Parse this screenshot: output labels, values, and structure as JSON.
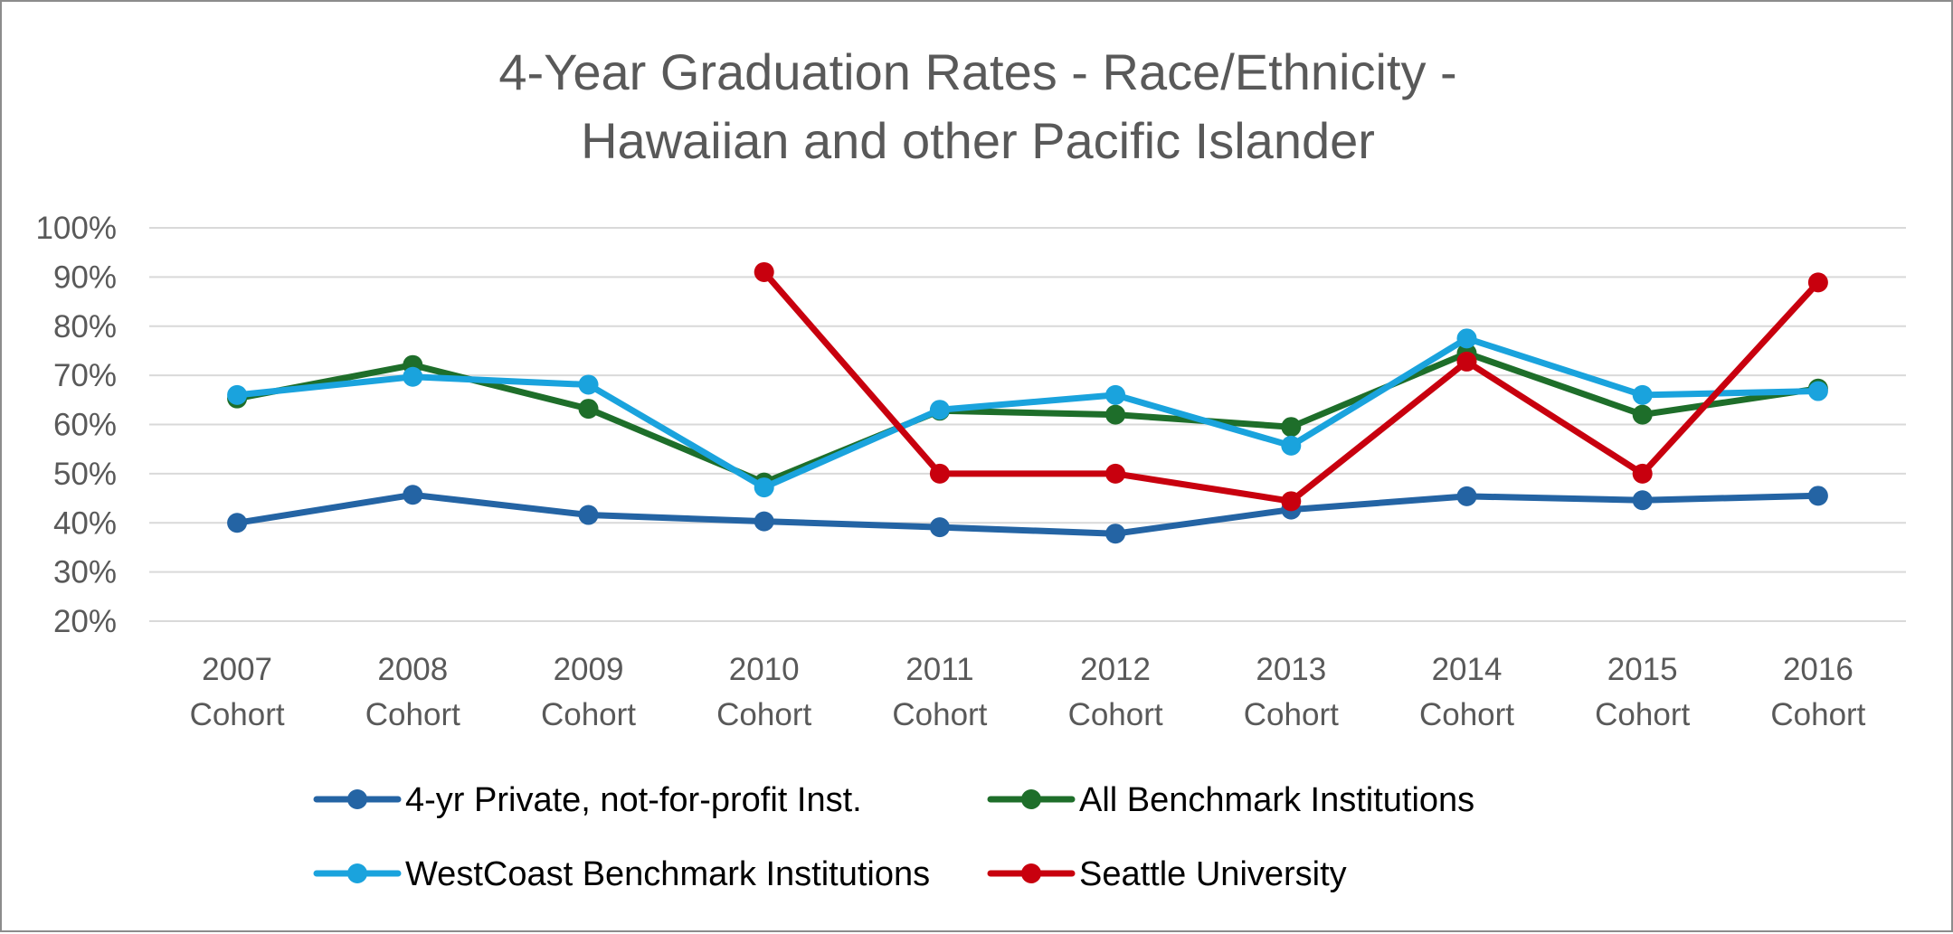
{
  "chart_data": {
    "type": "line",
    "title": "4-Year Graduation Rates - Race/Ethnicity -",
    "subtitle": "Hawaiian and other Pacific Islander",
    "xlabel": "",
    "ylabel": "",
    "ylim": [
      0.2,
      1.0
    ],
    "y_ticks": [
      {
        "value": 1.0,
        "label": "100%"
      },
      {
        "value": 0.9,
        "label": "90%"
      },
      {
        "value": 0.8,
        "label": "80%"
      },
      {
        "value": 0.7,
        "label": "70%"
      },
      {
        "value": 0.6,
        "label": "60%"
      },
      {
        "value": 0.5,
        "label": "50%"
      },
      {
        "value": 0.4,
        "label": "40%"
      },
      {
        "value": 0.3,
        "label": "30%"
      },
      {
        "value": 0.2,
        "label": "20%"
      }
    ],
    "categories": [
      {
        "year": "2007",
        "suffix": "Cohort"
      },
      {
        "year": "2008",
        "suffix": "Cohort"
      },
      {
        "year": "2009",
        "suffix": "Cohort"
      },
      {
        "year": "2010",
        "suffix": "Cohort"
      },
      {
        "year": "2011",
        "suffix": "Cohort"
      },
      {
        "year": "2012",
        "suffix": "Cohort"
      },
      {
        "year": "2013",
        "suffix": "Cohort"
      },
      {
        "year": "2014",
        "suffix": "Cohort"
      },
      {
        "year": "2015",
        "suffix": "Cohort"
      },
      {
        "year": "2016",
        "suffix": "Cohort"
      }
    ],
    "grid": true,
    "legend_position": "bottom",
    "series": [
      {
        "name": "4-yr Private, not-for-profit Inst.",
        "color": "#2464a4",
        "values": [
          0.4,
          0.457,
          0.416,
          0.403,
          0.391,
          0.378,
          0.427,
          0.454,
          0.446,
          0.455
        ]
      },
      {
        "name": "All Benchmark Institutions",
        "color": "#1e6e2a",
        "values": [
          0.653,
          0.721,
          0.632,
          0.482,
          0.628,
          0.62,
          0.595,
          0.745,
          0.62,
          0.673
        ]
      },
      {
        "name": "WestCoast Benchmark Institutions",
        "color": "#1aa3dd",
        "values": [
          0.66,
          0.697,
          0.681,
          0.472,
          0.63,
          0.66,
          0.557,
          0.775,
          0.66,
          0.668
        ]
      },
      {
        "name": "Seattle University",
        "color": "#c8000e",
        "values": [
          null,
          null,
          null,
          0.91,
          0.5,
          0.5,
          0.444,
          0.728,
          0.5,
          0.889
        ]
      }
    ]
  }
}
